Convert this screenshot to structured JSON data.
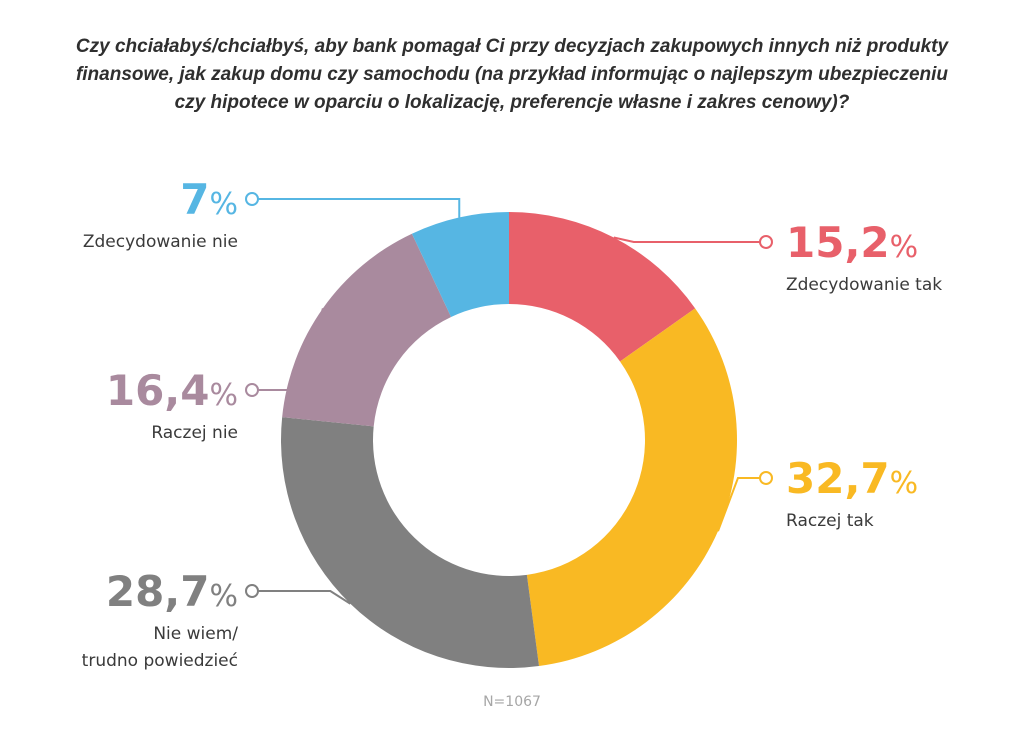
{
  "chart_data": {
    "type": "pie",
    "style": "donut",
    "title_lines": [
      "Czy chciałabyś/chciałbyś, aby bank pomagał Ci przy decyzjach zakupowych innych niż produkty",
      "finansowe, jak zakup domu czy samochodu (na przykład informując o najlepszym ubezpieczeniu",
      "czy hipotece w oparciu o lokalizację, preferencje własne i zakres cenowy)?"
    ],
    "slices": [
      {
        "label": "Zdecydowanie tak",
        "value": 15.2,
        "value_label": "15,2",
        "color": "#e8606a"
      },
      {
        "label": "Raczej tak",
        "value": 32.7,
        "value_label": "32,7",
        "color": "#f9b923"
      },
      {
        "label": "Nie wiem/ trudno powiedzieć",
        "label_lines": [
          "Nie wiem/",
          "trudno powiedzieć"
        ],
        "value": 28.7,
        "value_label": "28,7",
        "color": "#808080"
      },
      {
        "label": "Raczej nie",
        "value": 16.4,
        "value_label": "16,4",
        "color": "#a98a9e"
      },
      {
        "label": "Zdecydowanie nie",
        "value": 7,
        "value_label": "7",
        "color": "#56b6e3"
      }
    ],
    "percent_sign": "%",
    "footnote": "N=1067"
  }
}
